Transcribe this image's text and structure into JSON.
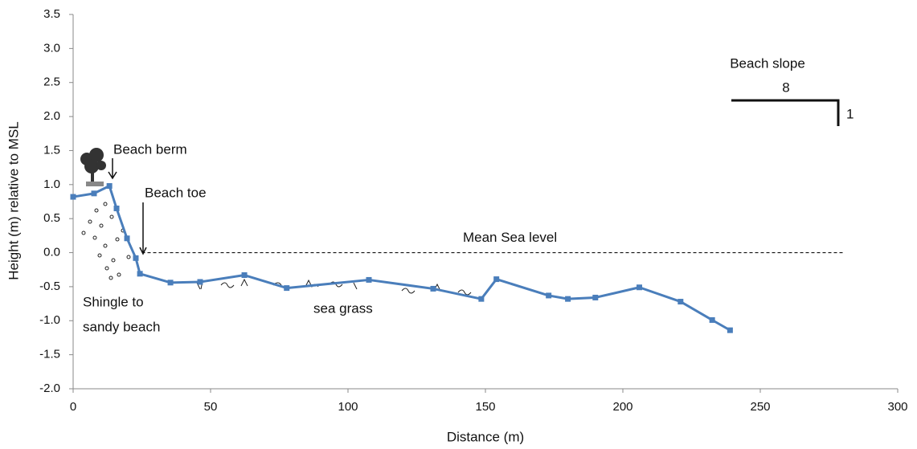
{
  "chart_data": {
    "type": "line",
    "x_label": "Distance (m)",
    "y_label": "Height (m) relative to MSL",
    "x": [
      0,
      7.6,
      13.2,
      15.8,
      19.6,
      22.8,
      24.3,
      35.4,
      46.2,
      62.3,
      77.7,
      107.6,
      131,
      148.5,
      154,
      173,
      180,
      190,
      206,
      221,
      232.5,
      239
    ],
    "series": [
      {
        "color": "#4a7ebb",
        "values": [
          0.82,
          0.87,
          0.98,
          0.65,
          0.21,
          -0.08,
          -0.31,
          -0.44,
          -0.43,
          -0.33,
          -0.52,
          -0.4,
          -0.53,
          -0.68,
          -0.39,
          -0.63,
          -0.68,
          -0.66,
          -0.51,
          -0.72,
          -0.99,
          -1.14
        ]
      }
    ],
    "xlim": [
      0,
      300
    ],
    "xticks": [
      0,
      50,
      100,
      150,
      200,
      250,
      300
    ],
    "ylim": [
      -2,
      3.5
    ],
    "yticks": [
      {
        "value": -2,
        "label": "-2.0"
      },
      {
        "value": -1.5,
        "label": "-1.5"
      },
      {
        "value": -1,
        "label": "-1.0"
      },
      {
        "value": -0.5,
        "label": "-0.5"
      },
      {
        "value": 0,
        "label": "0.0"
      },
      {
        "value": 0.5,
        "label": "0.5"
      },
      {
        "value": 1,
        "label": "1.0"
      },
      {
        "value": 1.5,
        "label": "1.5"
      },
      {
        "value": 2,
        "label": "2.0"
      },
      {
        "value": 2.5,
        "label": "2.5"
      },
      {
        "value": 3,
        "label": "3.0"
      },
      {
        "value": 3.5,
        "label": "3.5"
      }
    ],
    "reference_line": {
      "label": "Mean Sea level",
      "y": 0,
      "x": [
        25,
        280
      ]
    },
    "annotations": [
      "Beach berm",
      "Beach toe",
      "Shingle to",
      "sandy beach",
      "sea grass",
      "Beach slope",
      "8",
      "1"
    ]
  }
}
